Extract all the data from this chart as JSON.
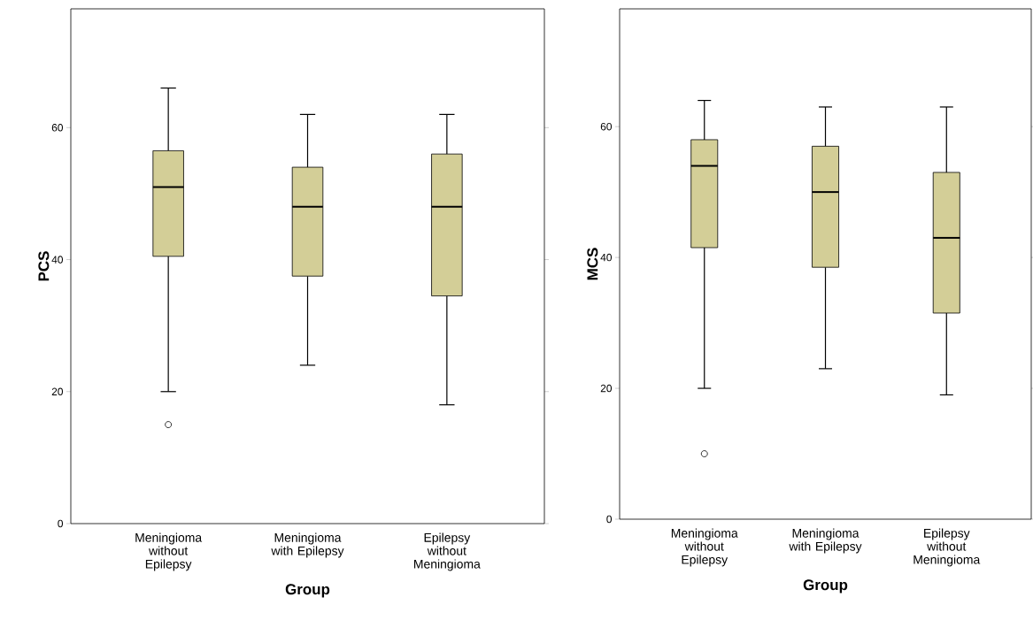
{
  "chart_data": [
    {
      "type": "box",
      "categories": [
        "Meningioma without Epilepsy",
        "Meningioma with Epilepsy",
        "Epilepsy without Meningioma"
      ],
      "ylabel": "PCS",
      "xlabel": "Group",
      "color": "#d3ce97",
      "ylim": [
        0,
        78
      ],
      "yticks": [
        0,
        20,
        40,
        60
      ],
      "grid": false,
      "marker": "circle",
      "boxes": [
        {
          "low": 20,
          "q1": 40.5,
          "median": 51,
          "q3": 56.5,
          "high": 66,
          "outliers": [
            15
          ]
        },
        {
          "low": 24,
          "q1": 37.5,
          "median": 48,
          "q3": 54,
          "high": 62
        },
        {
          "low": 18,
          "q1": 34.5,
          "median": 48,
          "q3": 56,
          "high": 62
        }
      ]
    },
    {
      "type": "box",
      "categories": [
        "Meningioma without Epilepsy",
        "Meningioma with Epilepsy",
        "Epilepsy without Meningioma"
      ],
      "ylabel": "MCS",
      "xlabel": "Group",
      "color": "#d3ce97",
      "ylim": [
        0,
        78
      ],
      "yticks": [
        0,
        20,
        40,
        60
      ],
      "grid": false,
      "marker": "circle",
      "boxes": [
        {
          "low": 20,
          "q1": 41.5,
          "median": 54,
          "q3": 58,
          "high": 64,
          "outliers": [
            10
          ]
        },
        {
          "low": 23,
          "q1": 38.5,
          "median": 50,
          "q3": 57,
          "high": 63
        },
        {
          "low": 19,
          "q1": 31.5,
          "median": 43,
          "q3": 53,
          "high": 63
        }
      ]
    }
  ]
}
